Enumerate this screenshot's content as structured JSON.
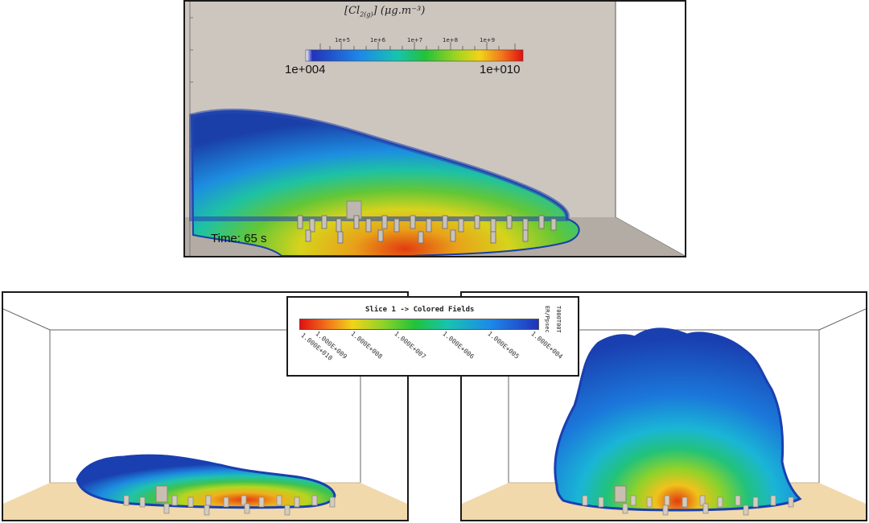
{
  "top_view": {
    "title_species": "Cl",
    "title_sub": "2(g)",
    "title_units": "(μg.m⁻³)",
    "legend_min": "1e+004",
    "legend_max": "1e+010",
    "legend_ticks": [
      "1e+5",
      "1e+6",
      "1e+7",
      "1e+8",
      "1e+9"
    ],
    "time_label": "Time: 65 s",
    "colors": {
      "background": "#cdc6bf",
      "floor": "#b3aca5",
      "plume_outer": "#1a3fa8"
    }
  },
  "slice_legend": {
    "title": "Slice 1 -> Colored Fields",
    "side_label_1": "ER/Ppsec",
    "side_label_2": "T000T00T",
    "ticks": [
      "1.000E+010",
      "1.000E+009",
      "1.000E+008",
      "1.000E+007",
      "1.000E+006",
      "1.000E+005",
      "1.000E+004"
    ]
  },
  "bottom_left": {
    "colors": {
      "floor": "#f1d9ac"
    }
  },
  "bottom_right": {
    "colors": {
      "floor": "#f1d9ac"
    }
  }
}
